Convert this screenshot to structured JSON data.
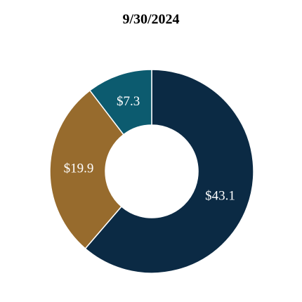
{
  "chart_data": {
    "type": "donut",
    "title": "9/30/2024",
    "values": [
      43.1,
      19.9,
      7.3
    ],
    "value_labels": [
      "$43.1",
      "$19.9",
      "$7.3"
    ],
    "colors": [
      "#0b2a44",
      "#976b2d",
      "#0c5b6f"
    ]
  }
}
